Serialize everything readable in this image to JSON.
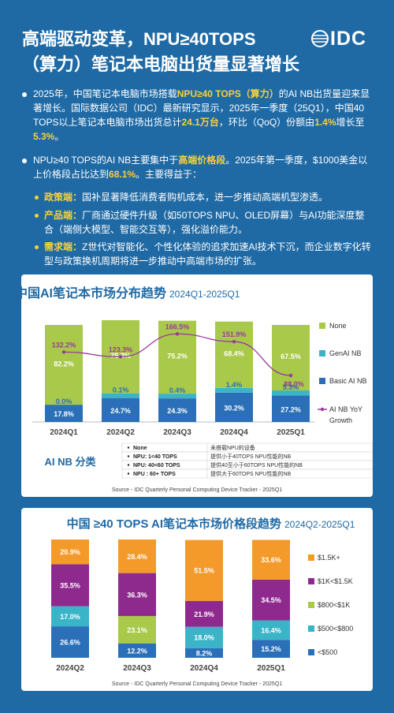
{
  "header": {
    "title_line1": "高端驱动变革，NPU≥40TOPS",
    "title_line2": "（算力）笔记本电脑出货量显著增长",
    "logo": "IDC"
  },
  "paragraphs": {
    "p1": {
      "t1": "2025年，中国笔记本电脑市场搭载",
      "h1": "NPU≥40 TOPS（算力）",
      "t2": "的AI NB出货量迎来显著增长。国际数据公司（IDC）最新研究显示，2025年一季度（25Q1），中国40 TOPS以上笔记本电脑市场出货总计",
      "h2": "24.1万台",
      "t3": "，环比（QoQ）份额由",
      "h3": "1.4%",
      "t4": "增长至",
      "h4": "5.3%",
      "t5": "。"
    },
    "p2": {
      "t1": "NPU≥40 TOPS的AI NB主要集中于",
      "h1": "高端价格段",
      "t2": "。2025年第一季度，$1000美金以上价格段占比达到",
      "h2": "68.1%",
      "t3": "。主要得益于："
    },
    "bullets": [
      {
        "label": "政策端：",
        "text": "国补显著降低消费者购机成本，进一步推动高端机型渗透。"
      },
      {
        "label": "产品端：",
        "text": "厂商通过硬件升级（如50TOPS NPU、OLED屏幕）与AI功能深度整合（端侧大模型、智能交互等），强化溢价能力。"
      },
      {
        "label": "需求端：",
        "text": "Z世代对智能化、个性化体验的追求加速AI技术下沉，而企业数字化转型与政策换机周期将进一步推动中高端市场的扩张。"
      }
    ]
  },
  "chart_data": [
    {
      "type": "bar",
      "title": "中国AI笔记本市场分布趋势",
      "subtitle": "2024Q1-2025Q1",
      "categories": [
        "2024Q1",
        "2024Q2",
        "2024Q3",
        "2024Q4",
        "2025Q1"
      ],
      "series": [
        {
          "name": "Basic AI NB",
          "values": [
            17.8,
            24.7,
            24.3,
            30.2,
            27.2
          ],
          "labels": [
            "17.8%",
            "24.7%",
            "24.3%",
            "30.2%",
            "27.2%"
          ],
          "color": "#2a6fb8"
        },
        {
          "name": "GenAI NB",
          "values": [
            0.0,
            0.1,
            0.4,
            1.4,
            5.3
          ],
          "labels": [
            "0.0%",
            "0.1%",
            "0.4%",
            "1.4%",
            "5.3%"
          ],
          "color": "#3bb4c8"
        },
        {
          "name": "None",
          "values": [
            82.2,
            75.3,
            75.2,
            68.4,
            67.5
          ],
          "labels": [
            "82.2%",
            "75.3%",
            "75.2%",
            "68.4%",
            "67.5%"
          ],
          "color": "#a9c94a"
        }
      ],
      "line_series": {
        "name": "AI NB YoY Growth",
        "values": [
          132.2,
          123.3,
          166.5,
          151.9,
          88.0
        ],
        "labels": [
          "132.2%",
          "123.3%",
          "166.5%",
          "151.9%",
          "88.0%"
        ],
        "color": "#9a3b9a"
      },
      "legend": [
        "None",
        "GenAI NB",
        "Basic AI NB",
        "AI NB YoY Growth"
      ],
      "legend_placement": "right",
      "ylim": [
        0,
        100
      ]
    },
    {
      "type": "bar",
      "title": "中国 ≥40 TOPS AI笔记本市场价格段趋势",
      "subtitle": "2024Q2-2025Q1",
      "categories": [
        "2024Q2",
        "2024Q3",
        "2024Q4",
        "2025Q1"
      ],
      "series": [
        {
          "name": "<$500",
          "values": [
            26.6,
            12.2,
            8.2,
            15.2
          ],
          "labels": [
            "26.6%",
            "12.2%",
            "8.2%",
            "15.2%"
          ],
          "color": "#2a6fb8"
        },
        {
          "name": "$500<$800",
          "values": [
            17.0,
            0.0,
            18.0,
            16.4
          ],
          "labels": [
            "17.0%",
            "",
            "18.0%",
            "16.4%"
          ],
          "color": "#3bb4c8"
        },
        {
          "name": "$800<$1K",
          "values": [
            0.0,
            23.1,
            0.0,
            0.0
          ],
          "labels": [
            "",
            "23.1%",
            "",
            ""
          ],
          "color": "#a9c94a"
        },
        {
          "name": "$1K<$1.5K",
          "values": [
            35.5,
            36.3,
            21.9,
            34.5
          ],
          "labels": [
            "35.5%",
            "36.3%",
            "21.9%",
            "34.5%"
          ],
          "color": "#8e2a8e"
        },
        {
          "name": "$1.5K+",
          "values": [
            20.9,
            28.4,
            51.5,
            33.6
          ],
          "labels": [
            "20.9%",
            "28.4%",
            "51.5%",
            "33.6%"
          ],
          "color": "#f39a2a"
        }
      ],
      "legend": [
        "$1.5K+",
        "$1K<$1.5K",
        "$800<$1K",
        "$500<$800",
        "<$500"
      ],
      "legend_placement": "right",
      "ylim": [
        0,
        100
      ]
    }
  ],
  "classification": {
    "title": "AI NB 分类",
    "rows": [
      {
        "k": "None",
        "v": "未搭载NPU的设备"
      },
      {
        "k": "NPU: 1<40 TOPS",
        "v": "提供小于40TOPS NPU性能的NB"
      },
      {
        "k": "NPU: 40<60 TOPS",
        "v": "提供40至小于60TOPS NPU性能的NB"
      },
      {
        "k": "NPU : 60+ TOPS",
        "v": "提供大于60TOPS NPU性能的NB"
      }
    ]
  },
  "sources": {
    "s1": "Source - IDC Quarterly Personal Computing Device Tracker - 2025Q1",
    "s2": "Source - IDC Quarterly Personal Computing Device Tracker - 2025Q1"
  }
}
